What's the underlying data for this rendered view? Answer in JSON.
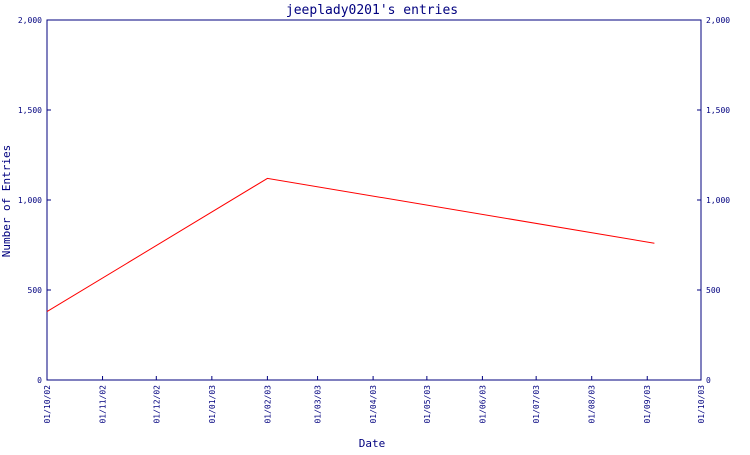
{
  "chart_data": {
    "type": "line",
    "title": "jeeplady0201's entries",
    "xlabel": "Date",
    "ylabel": "Number of Entries",
    "x_ticks": [
      "01/10/02",
      "01/11/02",
      "01/12/02",
      "01/01/03",
      "01/02/03",
      "01/03/03",
      "01/04/03",
      "01/05/03",
      "01/06/03",
      "01/07/03",
      "01/08/03",
      "01/09/03",
      "01/10/03"
    ],
    "y_ticks": [
      "0",
      "500",
      "1,000",
      "1,500",
      "2,000"
    ],
    "ylim": [
      0,
      2000
    ],
    "grid": false,
    "legend": "none",
    "series": [
      {
        "x": [
          "2002-10-01",
          "2003-02-01",
          "2003-09-05"
        ],
        "values": [
          380,
          1120,
          760
        ]
      }
    ],
    "colors": {
      "axis": "#00007f",
      "text": "#00007f",
      "line": "#ff0000",
      "background": "#ffffff"
    }
  }
}
